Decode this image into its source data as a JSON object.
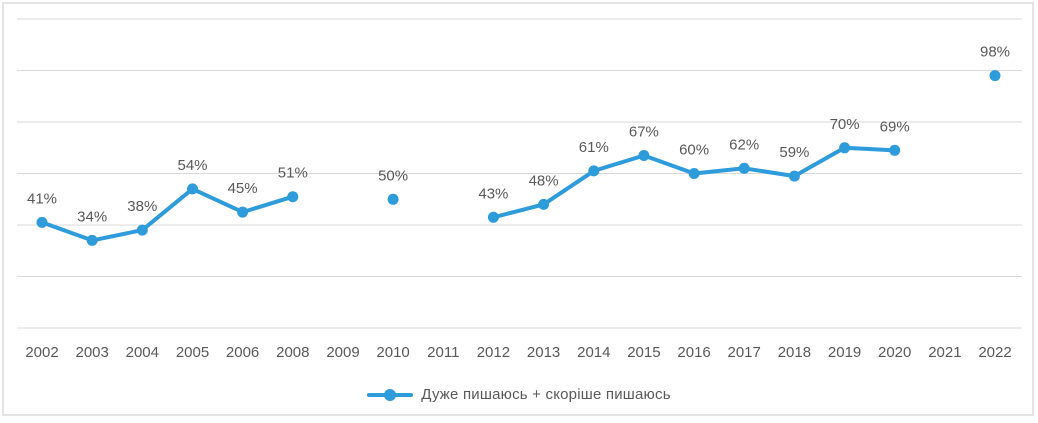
{
  "chart_data": {
    "type": "line",
    "title": "",
    "categories": [
      "2002",
      "2003",
      "2004",
      "2005",
      "2006",
      "2008",
      "2009",
      "2010",
      "2011",
      "2012",
      "2013",
      "2014",
      "2015",
      "2016",
      "2017",
      "2018",
      "2019",
      "2020",
      "2021",
      "2022"
    ],
    "series": [
      {
        "name": "Дуже пишаюсь + скоріше пишаюсь",
        "values": [
          41,
          34,
          38,
          54,
          45,
          51,
          null,
          50,
          null,
          43,
          48,
          61,
          67,
          60,
          62,
          59,
          70,
          69,
          null,
          98
        ]
      }
    ],
    "value_suffix": "%",
    "xlabel": "",
    "ylabel": "",
    "ylim": [
      0,
      120
    ],
    "gridline_step": 20,
    "grid": true,
    "y_axis_labels_visible": false,
    "legend_position": "bottom",
    "colors": {
      "series": "#2E9BDB",
      "grid": "#D9D9D9",
      "border": "#E4E4E4",
      "label_text": "#595959",
      "axis_text": "#595959"
    }
  }
}
